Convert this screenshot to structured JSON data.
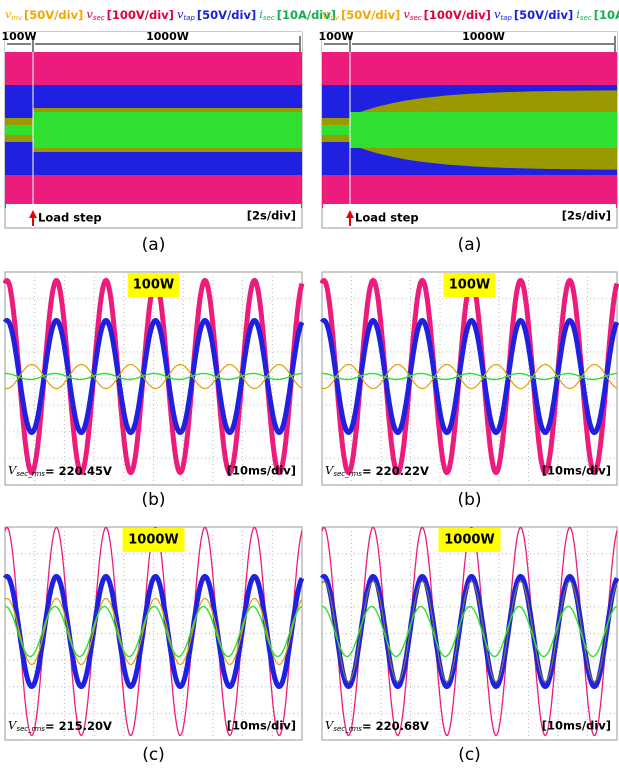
{
  "legend": [
    {
      "symbol": "v",
      "sub": "inv",
      "scale": "[50V/div]",
      "color": "#f0a800"
    },
    {
      "symbol": "v",
      "sub": "sec",
      "scale": "[100V/div]",
      "color": "#e0003c"
    },
    {
      "symbol": "v",
      "sub": "tap",
      "scale": "[50V/div]",
      "color": "#1a22d8"
    },
    {
      "symbol": "i",
      "sub": "sec",
      "scale": "[10A/div]",
      "color": "#10b050"
    }
  ],
  "top_row": [
    {
      "left_label": "100W",
      "right_label": "1000W",
      "annotation": "Load step",
      "timescale": "[2s/div]",
      "caption": "(a)"
    },
    {
      "left_label": "100W",
      "right_label": "1000W",
      "annotation": "Load step",
      "timescale": "[2s/div]",
      "caption": "(a)"
    }
  ],
  "middle_row": [
    {
      "badge": "100W",
      "measure_symbol": "V",
      "measure_sub": "sec_rms",
      "measure_value": "= 220.45V",
      "timescale": "[10ms/div]",
      "caption": "(b)"
    },
    {
      "badge": "100W",
      "measure_symbol": "V",
      "measure_sub": "sec_rms",
      "measure_value": "= 220.22V",
      "timescale": "[10ms/div]",
      "caption": "(b)"
    }
  ],
  "bottom_row": [
    {
      "badge": "1000W",
      "measure_symbol": "V",
      "measure_sub": "sec_rms",
      "measure_value": "= 215.20V",
      "timescale": "[10ms/div]",
      "caption": "(c)"
    },
    {
      "badge": "1000W",
      "measure_symbol": "V",
      "measure_sub": "sec_rms",
      "measure_value": "= 220.68V",
      "timescale": "[10ms/div]",
      "caption": "(c)"
    }
  ]
}
